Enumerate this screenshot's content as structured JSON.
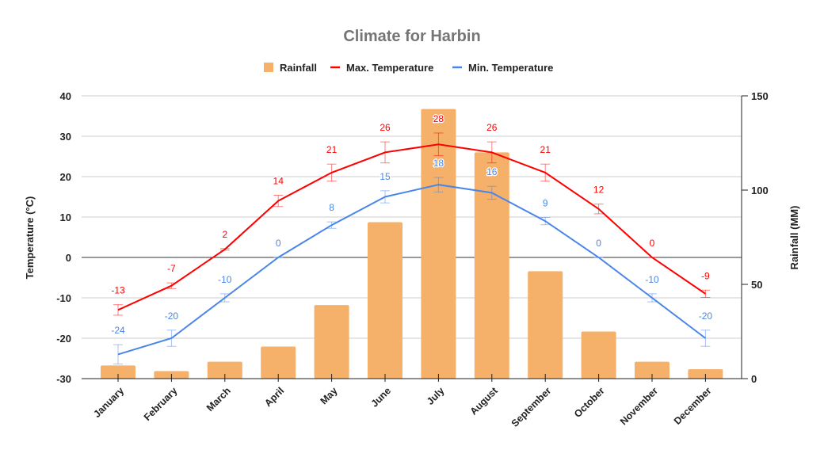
{
  "chart_data": {
    "type": "bar+line",
    "title": "Climate for Harbin",
    "legend_position": "top",
    "categories": [
      "January",
      "February",
      "March",
      "April",
      "May",
      "June",
      "July",
      "August",
      "September",
      "October",
      "November",
      "December"
    ],
    "series": [
      {
        "name": "Rainfall",
        "type": "bar",
        "axis": "right",
        "color": "#f5b06a",
        "values": [
          7,
          4,
          9,
          17,
          39,
          83,
          143,
          120,
          57,
          25,
          9,
          5
        ]
      },
      {
        "name": "Max. Temperature",
        "type": "line",
        "axis": "left",
        "color": "#ff0000",
        "error_percent": 10,
        "values": [
          -13,
          -7,
          2,
          14,
          21,
          26,
          28,
          26,
          21,
          12,
          0,
          -9
        ]
      },
      {
        "name": "Min. Temperature",
        "type": "line",
        "axis": "left",
        "color": "#4a86e8",
        "error_percent": 10,
        "values": [
          -24,
          -20,
          -10,
          0,
          8,
          15,
          18,
          16,
          9,
          0,
          -10,
          -20
        ]
      }
    ],
    "left_axis": {
      "label": "Temperature (°C)",
      "ylim": [
        -30,
        40
      ],
      "ticks": [
        "40",
        "30",
        "20",
        "10",
        "0",
        "-10",
        "-20",
        "-30"
      ]
    },
    "right_axis": {
      "label": "Rainfall (MM)",
      "ylim": [
        0,
        150
      ],
      "ticks": [
        "150",
        "100",
        "50",
        "0"
      ]
    },
    "grid": true
  }
}
